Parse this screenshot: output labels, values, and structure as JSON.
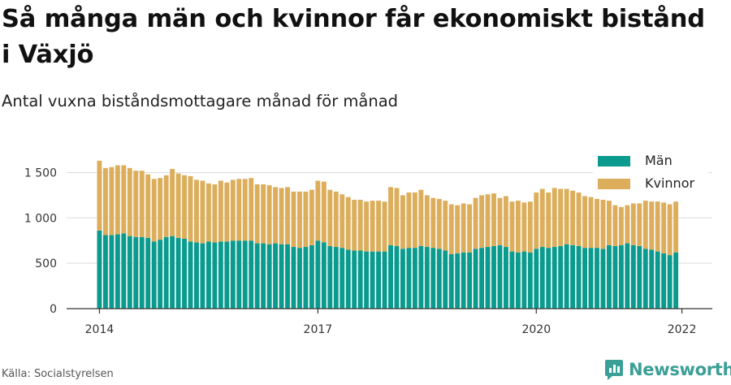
{
  "title": "Så många män och kvinnor får ekonomiskt bistånd i Växjö",
  "subtitle": "Antal vuxna biståndsmottagare månad för månad",
  "source": "Källa: Socialstyrelsen",
  "brand": {
    "name": "Newsworthy",
    "icon": "newsworthy-logo-icon"
  },
  "colors": {
    "man": "#0a9b8e",
    "kvinnor": "#dcae5c",
    "grid": "#dddddd",
    "axis": "#333333"
  },
  "legend": {
    "position": "top-right",
    "items": [
      {
        "label": "Män",
        "color": "#0a9b8e"
      },
      {
        "label": "Kvinnor",
        "color": "#dcae5c"
      }
    ]
  },
  "chart_data": {
    "type": "bar",
    "stacked": true,
    "grid": true,
    "ylim": [
      0,
      1700
    ],
    "y_ticks": [
      0,
      500,
      1000,
      1500
    ],
    "y_tick_labels": [
      "0",
      "500",
      "1 000",
      "1 500"
    ],
    "x_ticks": [
      {
        "index": 0,
        "label": "2014"
      },
      {
        "index": 36,
        "label": "2017"
      },
      {
        "index": 72,
        "label": "2020"
      },
      {
        "index": 96,
        "label": "2022"
      }
    ],
    "series": [
      {
        "name": "Män",
        "values": [
          860,
          810,
          810,
          820,
          830,
          800,
          790,
          790,
          780,
          740,
          760,
          790,
          800,
          780,
          770,
          740,
          730,
          720,
          740,
          730,
          740,
          740,
          750,
          750,
          750,
          750,
          720,
          720,
          710,
          720,
          710,
          710,
          680,
          670,
          680,
          700,
          750,
          730,
          690,
          680,
          670,
          650,
          640,
          640,
          630,
          630,
          630,
          630,
          700,
          690,
          660,
          670,
          670,
          690,
          680,
          670,
          660,
          640,
          600,
          610,
          620,
          620,
          660,
          670,
          680,
          690,
          700,
          680,
          630,
          620,
          630,
          620,
          660,
          680,
          670,
          680,
          690,
          710,
          700,
          690,
          670,
          670,
          670,
          660,
          700,
          690,
          700,
          720,
          700,
          690,
          660,
          650,
          630,
          610,
          590,
          620
        ]
      },
      {
        "name": "Kvinnor",
        "values": [
          770,
          740,
          750,
          760,
          750,
          750,
          730,
          730,
          700,
          690,
          680,
          680,
          740,
          710,
          700,
          720,
          690,
          690,
          640,
          640,
          670,
          650,
          670,
          680,
          680,
          690,
          650,
          650,
          650,
          620,
          620,
          630,
          610,
          620,
          610,
          610,
          660,
          670,
          620,
          610,
          590,
          580,
          560,
          560,
          550,
          560,
          560,
          550,
          640,
          640,
          590,
          610,
          610,
          620,
          570,
          550,
          550,
          550,
          550,
          530,
          540,
          530,
          560,
          580,
          580,
          580,
          520,
          560,
          550,
          570,
          540,
          560,
          620,
          640,
          610,
          650,
          630,
          610,
          600,
          590,
          570,
          560,
          540,
          540,
          490,
          450,
          420,
          420,
          460,
          470,
          530,
          530,
          550,
          560,
          560,
          560
        ]
      }
    ]
  }
}
